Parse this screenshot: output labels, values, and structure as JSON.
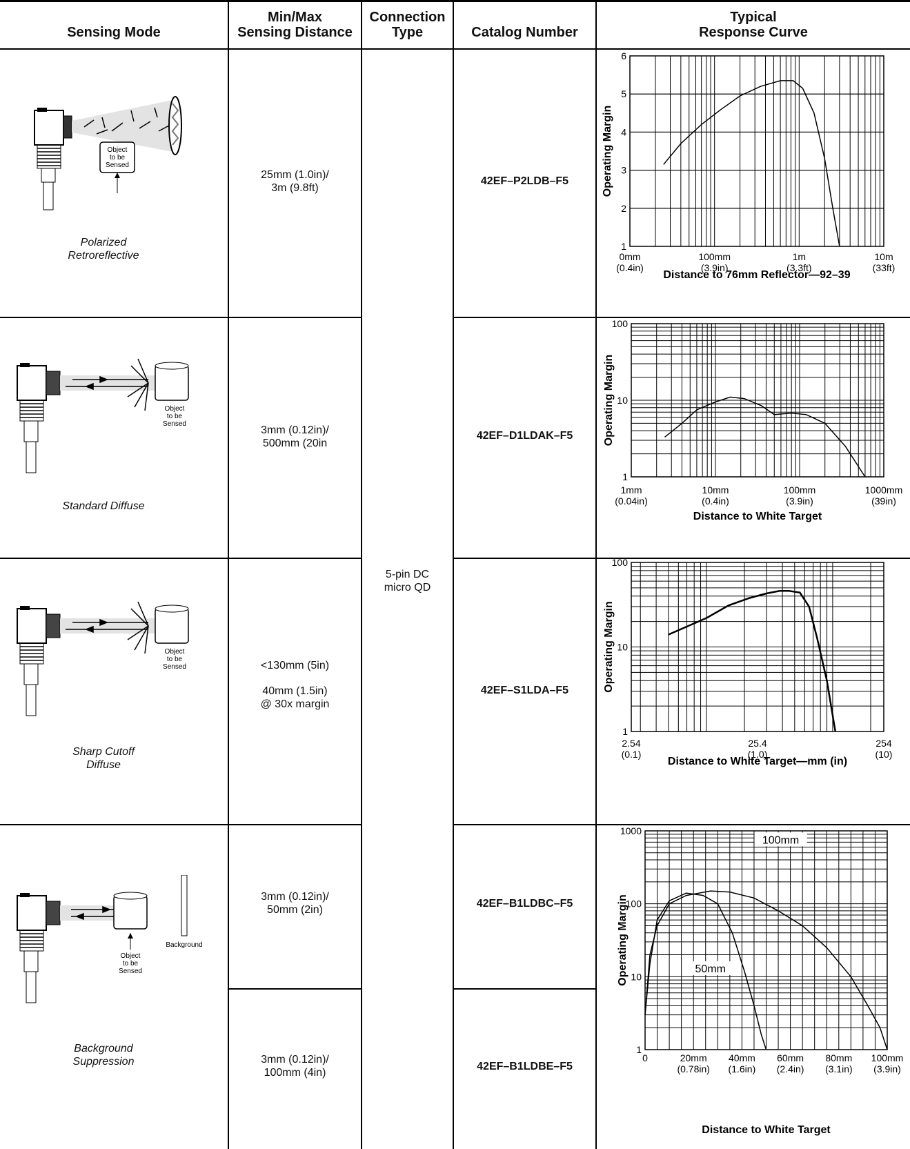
{
  "headers": {
    "sensing_mode": "Sensing Mode",
    "distance_l1": "Min/Max",
    "distance_l2": "Sensing Distance",
    "connection_l1": "Connection",
    "connection_l2": "Type",
    "catalog": "Catalog Number",
    "curve_l1": "Typical",
    "curve_l2": "Response Curve"
  },
  "connection_type": [
    "5-pin DC",
    "micro QD"
  ],
  "rows": [
    {
      "mode": [
        "Polarized",
        "Retroreflective"
      ],
      "illustration_labels": [
        "Object",
        "to be",
        "Sensed"
      ],
      "distance": [
        "25mm (1.0in)/",
        "3m (9.8ft)"
      ],
      "catalog": "42EF–P2LDB–F5",
      "chart_caption": "Distance to 76mm Reflector—92–39"
    },
    {
      "mode": [
        "Standard Diffuse"
      ],
      "illustration_labels": [
        "Object",
        "to be",
        "Sensed"
      ],
      "distance": [
        "3mm (0.12in)/",
        "500mm (20in"
      ],
      "catalog": "42EF–D1LDAK–F5",
      "chart_caption": "Distance to White Target"
    },
    {
      "mode": [
        "Sharp Cutoff",
        "Diffuse"
      ],
      "illustration_labels": [
        "Object",
        "to be",
        "Sensed"
      ],
      "distance": [
        "<130mm (5in)",
        "40mm (1.5in)",
        "@ 30x margin"
      ],
      "catalog": "42EF–S1LDA–F5",
      "chart_caption": "Distance to White Target—mm (in)"
    },
    {
      "mode": [
        "Background",
        "Suppression"
      ],
      "illustration_labels": [
        "Object",
        "to be",
        "Sensed",
        "Background"
      ],
      "distance_a": [
        "3mm (0.12in)/",
        "50mm (2in)"
      ],
      "catalog_a": "42EF–B1LDBC–F5",
      "distance_b": [
        "3mm (0.12in)/",
        "100mm (4in)"
      ],
      "catalog_b": "42EF–B1LDBE–F5",
      "chart_caption": "Distance to White Target"
    }
  ],
  "chart_data": [
    {
      "type": "line",
      "ylabel": "Operating Margin",
      "xlabel": "Distance to 76mm Reflector—92–39",
      "y_ticks": [
        "1",
        "2",
        "3",
        "4",
        "5",
        "6"
      ],
      "y_scale": "linear",
      "ylim": [
        1,
        6
      ],
      "x_scale": "log",
      "x_ticks": [
        [
          "0mm",
          "(0.4in)"
        ],
        [
          "100mm",
          "(3.9in)"
        ],
        [
          "1m",
          "(3.3ft)"
        ],
        [
          "10m",
          "(33ft)"
        ]
      ],
      "series": [
        {
          "x": [
            0.025,
            0.04,
            0.07,
            0.12,
            0.2,
            0.35,
            0.6,
            0.85,
            1.1,
            1.5,
            2.0,
            2.5,
            3.0
          ],
          "y": [
            3.15,
            3.7,
            4.2,
            4.6,
            4.95,
            5.2,
            5.35,
            5.35,
            5.15,
            4.5,
            3.3,
            2.0,
            1.0
          ]
        }
      ]
    },
    {
      "type": "line",
      "ylabel": "Operating Margin",
      "xlabel": "Distance to White Target",
      "y_ticks": [
        "1",
        "10",
        "100"
      ],
      "y_scale": "log",
      "ylim": [
        1,
        100
      ],
      "x_scale": "log",
      "x_ticks": [
        [
          "1mm",
          "(0.04in)"
        ],
        [
          "10mm",
          "(0.4in)"
        ],
        [
          "100mm",
          "(3.9in)"
        ],
        [
          "1000mm",
          "(39in)"
        ]
      ],
      "series": [
        {
          "x": [
            2.5,
            4,
            6,
            10,
            15,
            22,
            35,
            50,
            80,
            120,
            200,
            350,
            600
          ],
          "y": [
            3.3,
            5,
            7.5,
            9.5,
            11,
            10.5,
            8.5,
            6.5,
            6.8,
            6.5,
            5,
            2.5,
            1
          ]
        }
      ]
    },
    {
      "type": "line",
      "ylabel": "Operating Margin",
      "xlabel": "Distance to White Target—mm (in)",
      "y_ticks": [
        "1",
        "10",
        "100"
      ],
      "y_scale": "log",
      "ylim": [
        1,
        100
      ],
      "x_scale": "log",
      "x_ticks": [
        [
          "2.54",
          "(0.1)"
        ],
        [
          "25.4",
          "(1.0)"
        ],
        [
          "254",
          "(10)"
        ]
      ],
      "series": [
        {
          "x": [
            5,
            10,
            15,
            22,
            30,
            38,
            45,
            55,
            65,
            75,
            90,
            105
          ],
          "y": [
            14,
            22,
            31,
            38,
            43,
            46,
            46,
            44,
            30,
            13,
            4,
            1
          ]
        }
      ]
    },
    {
      "type": "line",
      "ylabel": "Operating Margin",
      "xlabel": "Distance to White Target",
      "y_ticks": [
        "1",
        "10",
        "100",
        "1000"
      ],
      "y_scale": "log",
      "ylim": [
        1,
        1000
      ],
      "x_scale": "linear",
      "xlim": [
        0,
        100
      ],
      "x_ticks": [
        [
          "0",
          ""
        ],
        [
          "20mm",
          "(0.78in)"
        ],
        [
          "40mm",
          "(1.6in)"
        ],
        [
          "60mm",
          "(2.4in)"
        ],
        [
          "80mm",
          "(3.1in)"
        ],
        [
          "100mm",
          "(3.9in)"
        ]
      ],
      "annotations": [
        "100mm",
        "50mm"
      ],
      "series": [
        {
          "name": "100mm",
          "x": [
            0,
            2,
            5,
            10,
            17,
            27,
            35,
            45,
            55,
            65,
            75,
            85,
            92,
            97,
            100
          ],
          "y": [
            3,
            20,
            50,
            100,
            130,
            150,
            145,
            120,
            80,
            50,
            25,
            10,
            4,
            2,
            1
          ]
        },
        {
          "name": "50mm",
          "x": [
            0,
            2,
            5,
            10,
            17,
            24,
            30,
            36,
            41,
            45,
            48,
            50
          ],
          "y": [
            3,
            15,
            60,
            110,
            140,
            130,
            100,
            40,
            12,
            4,
            1.6,
            1
          ]
        }
      ]
    }
  ]
}
